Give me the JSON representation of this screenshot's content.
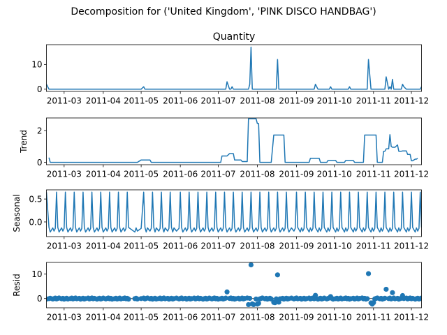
{
  "chart_data": {
    "type": "line",
    "title": "Decomposition for ('United Kingdom', 'PINK DISCO HANDBAG')",
    "x_dates": [
      "2011-02-15",
      "2011-02-17",
      "2011-02-18",
      "2011-02-20",
      "2011-02-21",
      "2011-02-22",
      "2011-02-23",
      "2011-02-24",
      "2011-02-25",
      "2011-02-27",
      "2011-02-28",
      "2011-03-01",
      "2011-03-02",
      "2011-03-03",
      "2011-03-04",
      "2011-03-06",
      "2011-03-07",
      "2011-03-08",
      "2011-03-09",
      "2011-03-10",
      "2011-03-11",
      "2011-03-13",
      "2011-03-14",
      "2011-03-15",
      "2011-03-16",
      "2011-03-17",
      "2011-03-18",
      "2011-03-20",
      "2011-03-21",
      "2011-03-22",
      "2011-03-23",
      "2011-03-24",
      "2011-03-25",
      "2011-03-27",
      "2011-03-28",
      "2011-03-29",
      "2011-03-30",
      "2011-03-31",
      "2011-04-01",
      "2011-04-03",
      "2011-04-04",
      "2011-04-05",
      "2011-04-06",
      "2011-04-07",
      "2011-04-08",
      "2011-04-10",
      "2011-04-11",
      "2011-04-12",
      "2011-04-13",
      "2011-04-14",
      "2011-04-15",
      "2011-04-17",
      "2011-04-18",
      "2011-04-19",
      "2011-04-20",
      "2011-04-21",
      "2011-04-26",
      "2011-04-27",
      "2011-04-28",
      "2011-05-01",
      "2011-05-03",
      "2011-05-04",
      "2011-05-05",
      "2011-05-06",
      "2011-05-08",
      "2011-05-09",
      "2011-05-10",
      "2011-05-11",
      "2011-05-12",
      "2011-05-13",
      "2011-05-15",
      "2011-05-16",
      "2011-05-17",
      "2011-05-18",
      "2011-05-19",
      "2011-05-20",
      "2011-05-22",
      "2011-05-23",
      "2011-05-24",
      "2011-05-25",
      "2011-05-26",
      "2011-05-27",
      "2011-05-29",
      "2011-05-31",
      "2011-06-01",
      "2011-06-02",
      "2011-06-03",
      "2011-06-05",
      "2011-06-06",
      "2011-06-07",
      "2011-06-08",
      "2011-06-09",
      "2011-06-10",
      "2011-06-12",
      "2011-06-13",
      "2011-06-14",
      "2011-06-15",
      "2011-06-16",
      "2011-06-17",
      "2011-06-19",
      "2011-06-20",
      "2011-06-21",
      "2011-06-22",
      "2011-06-23",
      "2011-06-24",
      "2011-06-26",
      "2011-06-27",
      "2011-06-28",
      "2011-06-29",
      "2011-06-30",
      "2011-07-01",
      "2011-07-03",
      "2011-07-04",
      "2011-07-05",
      "2011-07-06",
      "2011-07-07",
      "2011-07-08",
      "2011-07-10",
      "2011-07-11",
      "2011-07-12",
      "2011-07-13",
      "2011-07-14",
      "2011-07-15",
      "2011-07-17",
      "2011-07-18",
      "2011-07-19",
      "2011-07-20",
      "2011-07-21",
      "2011-07-22",
      "2011-07-24",
      "2011-07-25",
      "2011-07-26",
      "2011-07-27",
      "2011-07-28",
      "2011-07-29",
      "2011-07-31",
      "2011-08-01",
      "2011-08-02",
      "2011-08-03",
      "2011-08-04",
      "2011-08-05",
      "2011-08-07",
      "2011-08-08",
      "2011-08-09",
      "2011-08-10",
      "2011-08-11",
      "2011-08-12",
      "2011-08-14",
      "2011-08-15",
      "2011-08-16",
      "2011-08-17",
      "2011-08-18",
      "2011-08-19",
      "2011-08-21",
      "2011-08-22",
      "2011-08-23",
      "2011-08-24",
      "2011-08-25",
      "2011-08-26",
      "2011-08-28",
      "2011-08-30",
      "2011-08-31",
      "2011-09-01",
      "2011-09-02",
      "2011-09-04",
      "2011-09-05",
      "2011-09-06",
      "2011-09-07",
      "2011-09-08",
      "2011-09-09",
      "2011-09-11",
      "2011-09-12",
      "2011-09-13",
      "2011-09-14",
      "2011-09-15",
      "2011-09-16",
      "2011-09-18",
      "2011-09-19",
      "2011-09-20",
      "2011-09-21",
      "2011-09-22",
      "2011-09-23",
      "2011-09-25",
      "2011-09-26",
      "2011-09-27",
      "2011-09-28",
      "2011-09-29",
      "2011-09-30",
      "2011-10-02",
      "2011-10-03",
      "2011-10-04",
      "2011-10-05",
      "2011-10-06",
      "2011-10-07",
      "2011-10-09",
      "2011-10-10",
      "2011-10-11",
      "2011-10-12",
      "2011-10-13",
      "2011-10-14",
      "2011-10-16",
      "2011-10-17",
      "2011-10-18",
      "2011-10-19",
      "2011-10-20",
      "2011-10-21",
      "2011-10-23",
      "2011-10-24",
      "2011-10-25",
      "2011-10-26",
      "2011-10-27",
      "2011-10-28",
      "2011-10-30",
      "2011-10-31",
      "2011-11-01",
      "2011-11-02",
      "2011-11-03",
      "2011-11-04",
      "2011-11-06",
      "2011-11-07",
      "2011-11-08",
      "2011-11-09",
      "2011-11-10",
      "2011-11-11",
      "2011-11-13",
      "2011-11-14",
      "2011-11-15",
      "2011-11-16",
      "2011-11-17",
      "2011-11-18",
      "2011-11-20",
      "2011-11-21",
      "2011-11-22",
      "2011-11-23",
      "2011-11-24",
      "2011-11-25",
      "2011-11-27",
      "2011-11-28",
      "2011-11-29",
      "2011-11-30",
      "2011-12-01",
      "2011-12-02",
      "2011-12-04",
      "2011-12-05",
      "2011-12-06",
      "2011-12-07",
      "2011-12-08",
      "2011-12-09"
    ],
    "xlim": [
      "2011-02-15",
      "2011-12-09"
    ],
    "xticks": [
      "2011-03",
      "2011-04",
      "2011-05",
      "2011-06",
      "2011-07",
      "2011-08",
      "2011-09",
      "2011-10",
      "2011-11",
      "2011-12"
    ],
    "xtick_dates": [
      "2011-03-01",
      "2011-04-01",
      "2011-05-01",
      "2011-06-01",
      "2011-07-01",
      "2011-08-01",
      "2011-09-01",
      "2011-10-01",
      "2011-11-01",
      "2011-12-01"
    ],
    "panels": [
      {
        "name": "Quantity",
        "ylabel": "",
        "title": "Quantity",
        "kind": "line",
        "ylim": [
          -0.9,
          18
        ],
        "yticks": [
          0,
          10
        ],
        "events": [
          [
            "2011-02-15",
            2
          ],
          [
            "2011-05-03",
            1
          ],
          [
            "2011-07-08",
            3
          ],
          [
            "2011-07-12",
            1
          ],
          [
            "2011-07-26",
            2
          ],
          [
            "2011-07-27",
            17
          ],
          [
            "2011-08-17",
            12
          ],
          [
            "2011-09-16",
            2
          ],
          [
            "2011-09-28",
            1
          ],
          [
            "2011-10-13",
            1
          ],
          [
            "2011-10-28",
            12
          ],
          [
            "2011-11-11",
            5
          ],
          [
            "2011-11-14",
            1
          ],
          [
            "2011-11-16",
            4
          ],
          [
            "2011-11-24",
            2
          ],
          [
            "2011-11-25",
            1
          ],
          [
            "2011-12-09",
            1
          ]
        ]
      },
      {
        "name": "Trend",
        "ylabel": "Trend",
        "kind": "line",
        "ylim": [
          -0.15,
          2.8
        ],
        "yticks": [
          0,
          2
        ],
        "segments": [
          [
            "2011-02-17",
            "2011-02-17",
            0.3
          ],
          [
            "2011-02-18",
            "2011-04-28",
            0.0
          ],
          [
            "2011-05-01",
            "2011-05-08",
            0.15
          ],
          [
            "2011-05-09",
            "2011-07-03",
            0.0
          ],
          [
            "2011-07-04",
            "2011-07-08",
            0.4
          ],
          [
            "2011-07-10",
            "2011-07-13",
            0.55
          ],
          [
            "2011-07-14",
            "2011-07-19",
            0.15
          ],
          [
            "2011-07-20",
            "2011-07-24",
            0.05
          ],
          [
            "2011-07-25",
            "2011-07-31",
            2.75
          ],
          [
            "2011-08-01",
            "2011-08-02",
            2.45
          ],
          [
            "2011-08-03",
            "2011-08-12",
            0.0
          ],
          [
            "2011-08-14",
            "2011-08-22",
            1.72
          ],
          [
            "2011-08-23",
            "2011-09-11",
            0.0
          ],
          [
            "2011-09-12",
            "2011-09-19",
            0.25
          ],
          [
            "2011-09-20",
            "2011-09-25",
            0.0
          ],
          [
            "2011-09-26",
            "2011-10-02",
            0.12
          ],
          [
            "2011-10-03",
            "2011-10-09",
            0.0
          ],
          [
            "2011-10-10",
            "2011-10-16",
            0.12
          ],
          [
            "2011-10-17",
            "2011-10-24",
            0.0
          ],
          [
            "2011-10-25",
            "2011-11-03",
            1.72
          ],
          [
            "2011-11-04",
            "2011-11-08",
            0.0
          ],
          [
            "2011-11-09",
            "2011-11-10",
            0.7
          ],
          [
            "2011-11-11",
            "2011-11-13",
            0.85
          ],
          [
            "2011-11-14",
            "2011-11-14",
            1.75
          ],
          [
            "2011-11-15",
            "2011-11-15",
            1.0
          ],
          [
            "2011-11-16",
            "2011-11-18",
            0.95
          ],
          [
            "2011-11-20",
            "2011-11-20",
            1.1
          ],
          [
            "2011-11-21",
            "2011-11-23",
            0.7
          ],
          [
            "2011-11-24",
            "2011-11-27",
            0.72
          ],
          [
            "2011-11-28",
            "2011-11-30",
            0.5
          ],
          [
            "2011-12-01",
            "2011-12-02",
            0.1
          ],
          [
            "2011-12-04",
            "2011-12-05",
            0.2
          ],
          [
            "2011-12-06",
            "2011-12-06",
            0.25
          ]
        ]
      },
      {
        "name": "Seasonal",
        "ylabel": "Seasonal",
        "kind": "line",
        "ylim": [
          -0.32,
          0.7
        ],
        "yticks": [
          0.0,
          0.5
        ],
        "pattern": [
          0.65,
          -0.12,
          -0.22,
          -0.13,
          -0.2,
          -0.14
        ]
      },
      {
        "name": "Resid",
        "ylabel": "Resid",
        "kind": "scatter",
        "ylim": [
          -3.8,
          14.8
        ],
        "yticks": [
          0,
          10
        ],
        "outliers": [
          [
            "2011-07-08",
            2.7
          ],
          [
            "2011-07-27",
            13.8
          ],
          [
            "2011-08-17",
            9.7
          ],
          [
            "2011-09-16",
            1.3
          ],
          [
            "2011-09-28",
            0.8
          ],
          [
            "2011-10-28",
            10.2
          ],
          [
            "2011-11-11",
            3.8
          ],
          [
            "2011-11-16",
            2.4
          ],
          [
            "2011-11-24",
            1.2
          ],
          [
            "2011-07-25",
            -2.5
          ],
          [
            "2011-07-28",
            -2.2
          ],
          [
            "2011-07-29",
            -2.5
          ],
          [
            "2011-08-01",
            -2.3
          ],
          [
            "2011-08-02",
            -2.0
          ],
          [
            "2011-08-14",
            -1.6
          ],
          [
            "2011-08-15",
            -1.7
          ],
          [
            "2011-08-18",
            -1.5
          ],
          [
            "2011-10-30",
            -1.8
          ],
          [
            "2011-10-31",
            -2.3
          ],
          [
            "2011-11-01",
            -1.7
          ]
        ]
      }
    ]
  }
}
